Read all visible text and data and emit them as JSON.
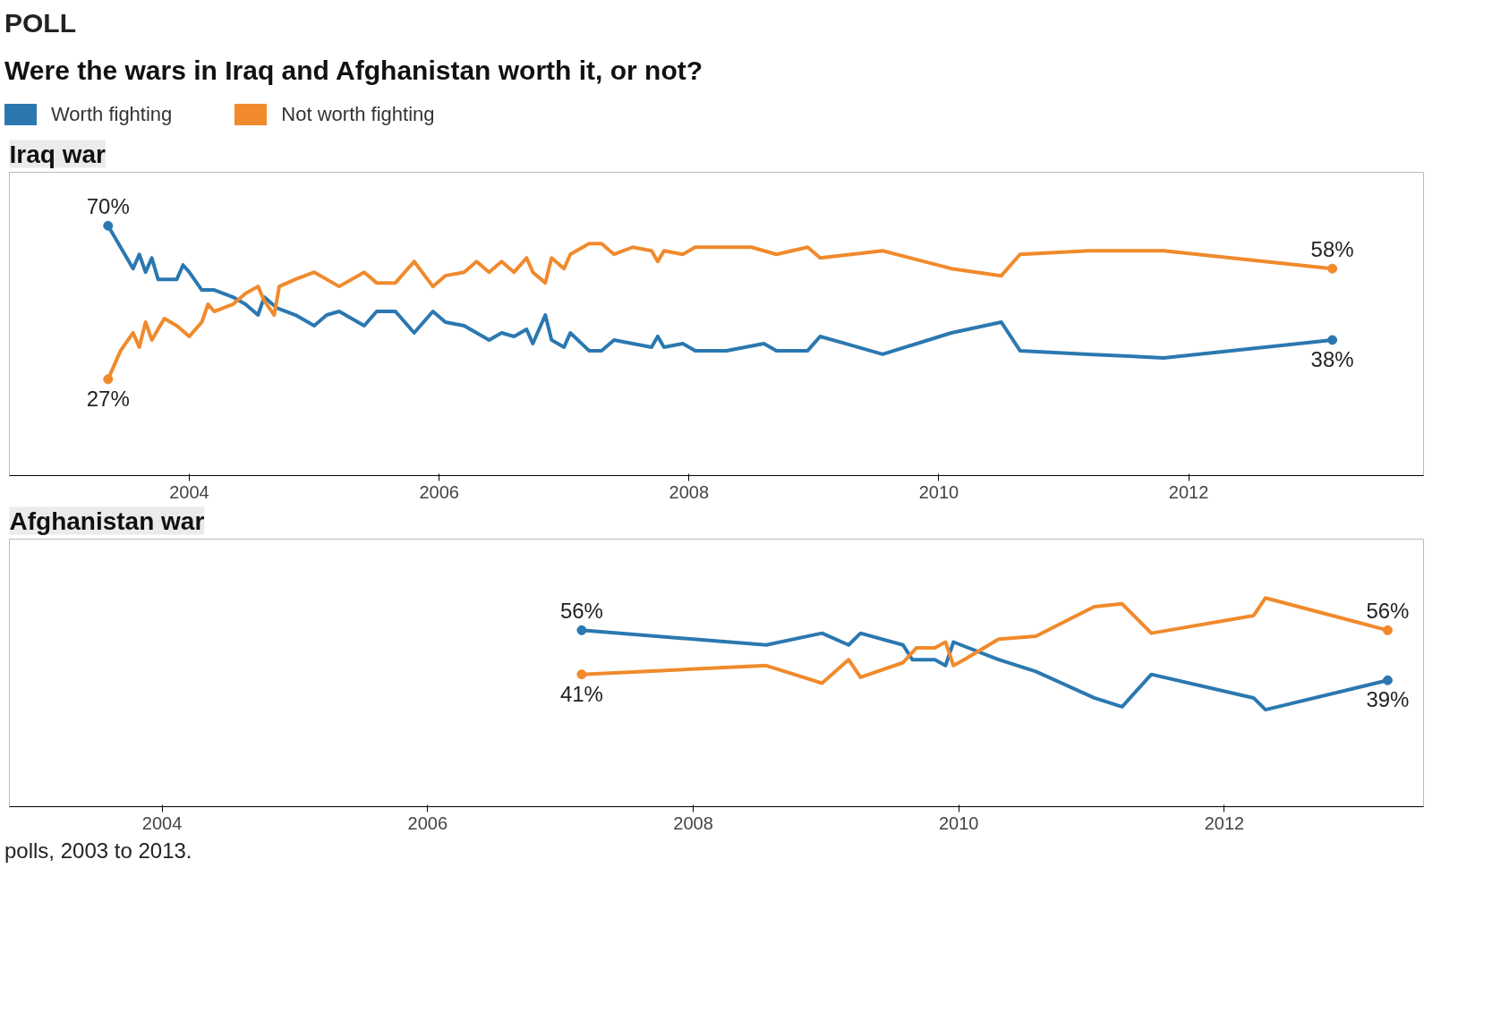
{
  "chart_data": [
    {
      "type": "line",
      "title": "Were the wars in Iraq and Afghanistan worth it, or not?",
      "subtitle": "Iraq war",
      "annotations": [
        "POLL"
      ],
      "legend": "top left",
      "tick_labels": "x",
      "grid": false,
      "xlim": [
        2002.56,
        2013.88
      ],
      "ylim": [
        0,
        85
      ],
      "xticks": [
        2004,
        2006,
        2008,
        2010,
        2012
      ],
      "series": [
        {
          "name": "Worth fighting",
          "color": "#2b78b0",
          "x": [
            2003.35,
            2003.45,
            2003.55,
            2003.6,
            2003.65,
            2003.7,
            2003.75,
            2003.9,
            2003.95,
            2004.0,
            2004.1,
            2004.2,
            2004.35,
            2004.45,
            2004.55,
            2004.6,
            2004.7,
            2004.85,
            2005.0,
            2005.1,
            2005.2,
            2005.3,
            2005.4,
            2005.5,
            2005.65,
            2005.8,
            2005.95,
            2006.05,
            2006.2,
            2006.3,
            2006.4,
            2006.5,
            2006.6,
            2006.7,
            2006.75,
            2006.85,
            2006.9,
            2007.0,
            2007.05,
            2007.2,
            2007.3,
            2007.4,
            2007.55,
            2007.7,
            2007.75,
            2007.8,
            2007.95,
            2008.05,
            2008.3,
            2008.6,
            2008.7,
            2008.95,
            2009.05,
            2009.25,
            2009.55,
            2010.1,
            2010.5,
            2010.65,
            2011.2,
            2011.8,
            2013.15
          ],
          "values": [
            70,
            64,
            58,
            62,
            57,
            61,
            55,
            55,
            59,
            57,
            52,
            52,
            50,
            48,
            45,
            50,
            47,
            45,
            42,
            45,
            46,
            44,
            42,
            46,
            46,
            40,
            46,
            43,
            42,
            40,
            38,
            40,
            39,
            41,
            37,
            45,
            38,
            36,
            40,
            35,
            35,
            38,
            37,
            36,
            39,
            36,
            37,
            35,
            35,
            37,
            35,
            35,
            39,
            37,
            34,
            40,
            43,
            35,
            34,
            33,
            38
          ],
          "value_labels": [
            "70%",
            null,
            null,
            null,
            null,
            null,
            null,
            null,
            null,
            null,
            null,
            null,
            null,
            null,
            null,
            null,
            null,
            null,
            null,
            null,
            null,
            null,
            null,
            null,
            null,
            null,
            null,
            null,
            null,
            null,
            null,
            null,
            null,
            null,
            null,
            null,
            null,
            null,
            null,
            null,
            null,
            null,
            null,
            null,
            null,
            null,
            null,
            null,
            null,
            null,
            null,
            null,
            null,
            null,
            null,
            null,
            null,
            null,
            null,
            null,
            "38%"
          ]
        },
        {
          "name": "Not worth fighting",
          "color": "#f08a2c",
          "x": [
            2003.35,
            2003.45,
            2003.55,
            2003.6,
            2003.65,
            2003.7,
            2003.8,
            2003.9,
            2004.0,
            2004.1,
            2004.15,
            2004.2,
            2004.35,
            2004.45,
            2004.55,
            2004.6,
            2004.68,
            2004.72,
            2004.85,
            2005.0,
            2005.2,
            2005.4,
            2005.5,
            2005.65,
            2005.8,
            2005.95,
            2006.05,
            2006.2,
            2006.3,
            2006.4,
            2006.5,
            2006.6,
            2006.7,
            2006.75,
            2006.85,
            2006.9,
            2007.0,
            2007.05,
            2007.2,
            2007.3,
            2007.4,
            2007.55,
            2007.7,
            2007.75,
            2007.8,
            2007.95,
            2008.05,
            2008.3,
            2008.5,
            2008.7,
            2008.95,
            2009.05,
            2009.55,
            2010.1,
            2010.5,
            2010.65,
            2011.2,
            2011.8,
            2013.15
          ],
          "values": [
            27,
            35,
            40,
            36,
            43,
            38,
            44,
            42,
            39,
            43,
            48,
            46,
            48,
            51,
            53,
            49,
            45,
            53,
            55,
            57,
            53,
            57,
            54,
            54,
            60,
            53,
            56,
            57,
            60,
            57,
            60,
            57,
            61,
            57,
            54,
            61,
            58,
            62,
            65,
            65,
            62,
            64,
            63,
            60,
            63,
            62,
            64,
            64,
            64,
            62,
            64,
            61,
            63,
            58,
            56,
            62,
            63,
            63,
            58
          ],
          "value_labels": [
            "27%",
            null,
            null,
            null,
            null,
            null,
            null,
            null,
            null,
            null,
            null,
            null,
            null,
            null,
            null,
            null,
            null,
            null,
            null,
            null,
            null,
            null,
            null,
            null,
            null,
            null,
            null,
            null,
            null,
            null,
            null,
            null,
            null,
            null,
            null,
            null,
            null,
            null,
            null,
            null,
            null,
            null,
            null,
            null,
            null,
            null,
            null,
            null,
            null,
            null,
            null,
            null,
            null,
            null,
            null,
            null,
            null,
            null,
            "58%"
          ]
        }
      ]
    },
    {
      "type": "line",
      "subtitle": "Afghanistan war",
      "annotations": [
        "polls, 2003 to 2013."
      ],
      "tick_labels": "x",
      "grid": false,
      "xlim": [
        2002.85,
        2013.5
      ],
      "ylim": [
        -4,
        87
      ],
      "xticks": [
        2004,
        2006,
        2008,
        2010,
        2012
      ],
      "series": [
        {
          "color": "#2b78b0",
          "x": [
            2007.16,
            2008.55,
            2008.97,
            2009.17,
            2009.26,
            2009.58,
            2009.65,
            2009.82,
            2009.9,
            2009.96,
            2010.3,
            2010.58,
            2011.02,
            2011.23,
            2011.45,
            2012.22,
            2012.31,
            2013.23
          ],
          "values": [
            56,
            51,
            55,
            51,
            55,
            51,
            46,
            46,
            44,
            52,
            46,
            42,
            33,
            30,
            41,
            33,
            29,
            39
          ],
          "value_labels": [
            "56%",
            null,
            null,
            null,
            null,
            null,
            null,
            null,
            null,
            null,
            null,
            null,
            null,
            null,
            null,
            null,
            null,
            "39%"
          ]
        },
        {
          "color": "#f08a2c",
          "x": [
            2007.16,
            2008.55,
            2008.97,
            2009.17,
            2009.26,
            2009.58,
            2009.68,
            2009.82,
            2009.9,
            2009.96,
            2010.04,
            2010.3,
            2010.58,
            2011.02,
            2011.23,
            2011.45,
            2012.22,
            2012.31,
            2013.23
          ],
          "values": [
            41,
            44,
            38,
            46,
            40,
            45,
            50,
            50,
            52,
            44,
            46,
            53,
            54,
            64,
            65,
            55,
            61,
            67,
            56
          ],
          "value_labels": [
            "41%",
            null,
            null,
            null,
            null,
            null,
            null,
            null,
            null,
            null,
            null,
            null,
            null,
            null,
            null,
            null,
            null,
            null,
            "56%"
          ]
        }
      ]
    }
  ]
}
